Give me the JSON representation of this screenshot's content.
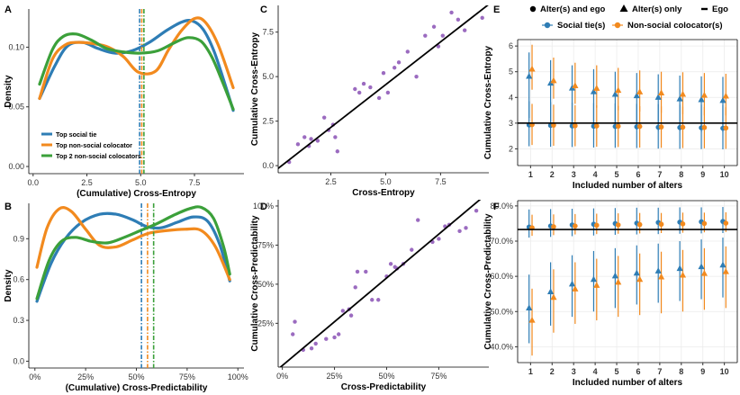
{
  "colors": {
    "social": "#2E7DB5",
    "nonsocial": "#F28A1E",
    "top2": "#3BA03A",
    "scatter": "#9B6BC0",
    "line": "#000000",
    "grid": "#EBEBEB",
    "panel_bg_ab": "#FFFFFF"
  },
  "legend_top": {
    "alters_ego": "Alter(s) and ego",
    "alters_only": "Alter(s) only",
    "ego": "Ego",
    "social": "Social tie(s)",
    "nonsocial": "Non-social colocator(s)",
    "icons": [
      "circle-icon",
      "triangle-icon",
      "dash-icon"
    ]
  },
  "chart_data": [
    {
      "panel": "A",
      "type": "line",
      "xlabel": "(Cumulative) Cross-Entropy",
      "ylabel": "Density",
      "xlim": [
        -0.2,
        9.8
      ],
      "ylim": [
        -0.006,
        0.132
      ],
      "xticks": [
        0,
        2.5,
        5,
        7.5
      ],
      "xtick_labels": [
        "0.0",
        "2.5",
        "5.0",
        "7.5"
      ],
      "yticks": [
        0,
        0.05,
        0.1
      ],
      "ytick_labels": [
        "0.00",
        "0.05",
        "0.10"
      ],
      "legend": [
        "Top social tie",
        "Top non-social colocator",
        "Top 2 non-social colocators"
      ],
      "series": [
        {
          "name": "Top social tie",
          "color_key": "social",
          "mean": 4.95,
          "x": [
            0.3,
            1.0,
            1.6,
            2.3,
            3.0,
            3.8,
            4.6,
            5.4,
            6.2,
            6.9,
            7.4,
            7.9,
            8.4,
            8.9,
            9.3
          ],
          "y": [
            0.057,
            0.084,
            0.101,
            0.104,
            0.099,
            0.095,
            0.097,
            0.104,
            0.114,
            0.121,
            0.122,
            0.115,
            0.097,
            0.07,
            0.047
          ]
        },
        {
          "name": "Top non-social colocator",
          "color_key": "nonsocial",
          "mean": 5.05,
          "x": [
            0.3,
            0.9,
            1.5,
            2.1,
            2.8,
            3.5,
            4.2,
            4.9,
            5.7,
            6.3,
            6.9,
            7.5,
            8.0,
            8.6,
            9.3
          ],
          "y": [
            0.057,
            0.09,
            0.102,
            0.104,
            0.103,
            0.1,
            0.092,
            0.079,
            0.08,
            0.098,
            0.114,
            0.124,
            0.121,
            0.102,
            0.066
          ]
        },
        {
          "name": "Top 2 non-social colocators",
          "color_key": "top2",
          "mean": 5.15,
          "x": [
            0.3,
            0.9,
            1.4,
            2.0,
            2.7,
            3.4,
            4.2,
            5.0,
            5.8,
            6.6,
            7.2,
            7.8,
            8.3,
            8.8,
            9.3
          ],
          "y": [
            0.069,
            0.098,
            0.109,
            0.111,
            0.106,
            0.099,
            0.096,
            0.095,
            0.097,
            0.104,
            0.108,
            0.105,
            0.092,
            0.071,
            0.048
          ]
        }
      ]
    },
    {
      "panel": "B",
      "type": "line",
      "xlabel": "(Cumulative) Cross-Predictability",
      "ylabel": "Density",
      "xlim": [
        -0.03,
        1.03
      ],
      "ylim": [
        -0.05,
        1.16
      ],
      "xticks": [
        0,
        0.25,
        0.5,
        0.75,
        1.0
      ],
      "xtick_labels": [
        "0%",
        "25%",
        "50%",
        "75%",
        "100%"
      ],
      "yticks": [
        0,
        0.3,
        0.6,
        0.9
      ],
      "ytick_labels": [
        "0.0",
        "0.3",
        "0.6",
        "0.9"
      ],
      "series": [
        {
          "name": "Top social tie",
          "color_key": "social",
          "mean": 0.525,
          "x": [
            0.01,
            0.08,
            0.15,
            0.23,
            0.32,
            0.4,
            0.48,
            0.55,
            0.62,
            0.7,
            0.78,
            0.85,
            0.91,
            0.96
          ],
          "y": [
            0.44,
            0.72,
            0.9,
            1.02,
            1.08,
            1.08,
            1.04,
            0.99,
            0.98,
            1.02,
            1.06,
            1.03,
            0.86,
            0.59
          ]
        },
        {
          "name": "Top non-social colocator",
          "color_key": "nonsocial",
          "mean": 0.555,
          "x": [
            0.01,
            0.06,
            0.12,
            0.18,
            0.25,
            0.32,
            0.4,
            0.48,
            0.56,
            0.65,
            0.74,
            0.82,
            0.89,
            0.96
          ],
          "y": [
            0.69,
            0.98,
            1.12,
            1.1,
            0.97,
            0.85,
            0.84,
            0.89,
            0.94,
            0.96,
            0.97,
            0.96,
            0.84,
            0.6
          ]
        },
        {
          "name": "Top 2 non-social colocators",
          "color_key": "top2",
          "mean": 0.585,
          "x": [
            0.01,
            0.07,
            0.13,
            0.2,
            0.28,
            0.36,
            0.44,
            0.52,
            0.6,
            0.68,
            0.76,
            0.82,
            0.88,
            0.93,
            0.96
          ],
          "y": [
            0.46,
            0.74,
            0.88,
            0.91,
            0.88,
            0.87,
            0.91,
            0.96,
            1.01,
            1.07,
            1.12,
            1.13,
            1.05,
            0.84,
            0.64
          ]
        }
      ]
    },
    {
      "panel": "C",
      "type": "scatter",
      "xlabel": "Cross-Entropy",
      "ylabel": "Cumulative Cross-Entropy",
      "xlim": [
        0.1,
        9.7
      ],
      "ylim": [
        -0.4,
        9.0
      ],
      "xticks": [
        2.5,
        5.0,
        7.5
      ],
      "xtick_labels": [
        "2.5",
        "5.0",
        "7.5"
      ],
      "yticks": [
        0,
        2.5,
        5,
        7.5
      ],
      "ytick_labels": [
        "0.0",
        "2.5",
        "5.0",
        "7.5"
      ],
      "fit_line": {
        "slope": 0.96,
        "intercept": -0.25
      },
      "points": [
        [
          0.6,
          0.2
        ],
        [
          1.0,
          1.2
        ],
        [
          1.3,
          1.6
        ],
        [
          1.5,
          1.1
        ],
        [
          1.6,
          1.5
        ],
        [
          1.9,
          1.4
        ],
        [
          2.2,
          2.7
        ],
        [
          2.4,
          2.0
        ],
        [
          2.6,
          2.3
        ],
        [
          2.7,
          1.6
        ],
        [
          2.8,
          0.8
        ],
        [
          3.6,
          4.3
        ],
        [
          3.8,
          4.1
        ],
        [
          4.0,
          4.6
        ],
        [
          4.3,
          4.4
        ],
        [
          4.7,
          3.8
        ],
        [
          4.9,
          5.2
        ],
        [
          5.1,
          4.1
        ],
        [
          5.4,
          5.5
        ],
        [
          5.6,
          5.8
        ],
        [
          6.0,
          6.4
        ],
        [
          6.4,
          5.0
        ],
        [
          6.8,
          7.3
        ],
        [
          7.2,
          7.8
        ],
        [
          7.4,
          6.7
        ],
        [
          7.6,
          7.3
        ],
        [
          8.0,
          8.6
        ],
        [
          8.3,
          8.2
        ],
        [
          8.6,
          7.6
        ],
        [
          9.4,
          8.3
        ]
      ]
    },
    {
      "panel": "D",
      "type": "scatter",
      "xlabel": "Cross-Predictability",
      "ylabel": "Cumulative Cross-Predictability",
      "xlim": [
        -0.02,
        0.99
      ],
      "ylim": [
        -0.03,
        1.04
      ],
      "xticks": [
        0,
        0.25,
        0.5,
        0.75
      ],
      "xtick_labels": [
        "0%",
        "25%",
        "50%",
        "75%"
      ],
      "yticks": [
        0.25,
        0.5,
        0.75,
        1.0
      ],
      "ytick_labels": [
        "25%",
        "50%",
        "75%",
        "100%"
      ],
      "fit_line": {
        "slope": 1.12,
        "intercept": -0.02
      },
      "points": [
        [
          0.05,
          0.18
        ],
        [
          0.06,
          0.26
        ],
        [
          0.1,
          0.08
        ],
        [
          0.14,
          0.09
        ],
        [
          0.16,
          0.12
        ],
        [
          0.21,
          0.15
        ],
        [
          0.25,
          0.16
        ],
        [
          0.27,
          0.18
        ],
        [
          0.29,
          0.33
        ],
        [
          0.32,
          0.34
        ],
        [
          0.33,
          0.3
        ],
        [
          0.35,
          0.48
        ],
        [
          0.36,
          0.58
        ],
        [
          0.4,
          0.58
        ],
        [
          0.43,
          0.4
        ],
        [
          0.46,
          0.4
        ],
        [
          0.5,
          0.55
        ],
        [
          0.52,
          0.63
        ],
        [
          0.54,
          0.61
        ],
        [
          0.55,
          0.6
        ],
        [
          0.58,
          0.63
        ],
        [
          0.62,
          0.72
        ],
        [
          0.65,
          0.91
        ],
        [
          0.72,
          0.77
        ],
        [
          0.75,
          0.79
        ],
        [
          0.78,
          0.87
        ],
        [
          0.8,
          0.88
        ],
        [
          0.85,
          0.84
        ],
        [
          0.88,
          0.86
        ],
        [
          0.93,
          0.97
        ]
      ]
    },
    {
      "panel": "E",
      "type": "scatter",
      "xlabel": "Included number of alters",
      "ylabel": "Cumulative Cross-Entropy",
      "categories": [
        1,
        2,
        3,
        4,
        5,
        6,
        7,
        8,
        9,
        10
      ],
      "xlim": [
        0.4,
        10.6
      ],
      "ylim": [
        1.35,
        6.25
      ],
      "yticks": [
        2,
        3,
        4,
        5,
        6
      ],
      "ytick_labels": [
        "2",
        "3",
        "4",
        "5",
        "6"
      ],
      "ego_line": 3.0,
      "series": [
        {
          "name": "Social tie(s), Alter(s) and ego",
          "color_key": "social",
          "marker": "circle",
          "values": [
            2.93,
            2.91,
            2.89,
            2.88,
            2.87,
            2.86,
            2.84,
            2.83,
            2.82,
            2.8
          ],
          "lower": [
            2.1,
            2.08,
            2.07,
            2.05,
            2.04,
            2.03,
            2.01,
            2.0,
            1.99,
            1.98
          ],
          "upper": [
            3.85,
            3.82,
            3.8,
            3.78,
            3.77,
            3.75,
            3.74,
            3.72,
            3.71,
            3.7
          ]
        },
        {
          "name": "Non-social colocator(s), Alter(s) and ego",
          "color_key": "nonsocial",
          "marker": "circle",
          "values": [
            2.94,
            2.92,
            2.9,
            2.89,
            2.88,
            2.87,
            2.85,
            2.84,
            2.83,
            2.81
          ],
          "lower": [
            2.15,
            2.12,
            2.1,
            2.08,
            2.07,
            2.05,
            2.04,
            2.03,
            2.02,
            2.0
          ],
          "upper": [
            3.75,
            3.72,
            3.7,
            3.69,
            3.67,
            3.66,
            3.65,
            3.64,
            3.63,
            3.62
          ]
        },
        {
          "name": "Social tie(s), Alter(s) only",
          "color_key": "social",
          "marker": "triangle",
          "values": [
            4.82,
            4.55,
            4.36,
            4.22,
            4.12,
            4.06,
            4.0,
            3.94,
            3.91,
            3.88
          ],
          "lower": [
            3.2,
            3.05,
            2.95,
            2.85,
            2.8,
            2.75,
            2.7,
            2.7,
            2.65,
            2.65
          ],
          "upper": [
            5.75,
            5.45,
            5.25,
            5.1,
            5.0,
            4.95,
            4.9,
            4.85,
            4.82,
            4.8
          ]
        },
        {
          "name": "Non-social colocator(s), Alter(s) only",
          "color_key": "nonsocial",
          "marker": "triangle",
          "values": [
            5.1,
            4.65,
            4.45,
            4.35,
            4.27,
            4.21,
            4.17,
            4.12,
            4.08,
            4.05
          ],
          "lower": [
            4.3,
            3.95,
            3.75,
            3.6,
            3.5,
            3.45,
            3.4,
            3.35,
            3.3,
            3.3
          ],
          "upper": [
            6.05,
            5.55,
            5.35,
            5.25,
            5.15,
            5.05,
            5.0,
            4.98,
            4.95,
            4.92
          ]
        }
      ]
    },
    {
      "panel": "F",
      "type": "scatter",
      "xlabel": "Included number of alters",
      "ylabel": "Cumulative Cross-Predictability",
      "categories": [
        1,
        2,
        3,
        4,
        5,
        6,
        7,
        8,
        9,
        10
      ],
      "xlim": [
        0.4,
        10.6
      ],
      "ylim": [
        0.355,
        0.815
      ],
      "yticks": [
        0.4,
        0.5,
        0.6,
        0.7,
        0.8
      ],
      "ytick_labels": [
        "40.0%",
        "50.0%",
        "60.0%",
        "70.0%",
        "80.0%"
      ],
      "ego_line": 0.733,
      "series": [
        {
          "name": "Social tie(s), Alter(s) and ego",
          "color_key": "social",
          "marker": "circle",
          "values": [
            0.74,
            0.743,
            0.746,
            0.748,
            0.75,
            0.751,
            0.753,
            0.754,
            0.755,
            0.756
          ],
          "lower": [
            0.71,
            0.712,
            0.714,
            0.716,
            0.718,
            0.719,
            0.72,
            0.721,
            0.722,
            0.723
          ],
          "upper": [
            0.79,
            0.791,
            0.792,
            0.793,
            0.794,
            0.795,
            0.795,
            0.796,
            0.796,
            0.797
          ]
        },
        {
          "name": "Non-social colocator(s), Alter(s) and ego",
          "color_key": "nonsocial",
          "marker": "circle",
          "values": [
            0.738,
            0.741,
            0.743,
            0.745,
            0.746,
            0.747,
            0.748,
            0.749,
            0.75,
            0.751
          ],
          "lower": [
            0.715,
            0.717,
            0.719,
            0.72,
            0.721,
            0.722,
            0.723,
            0.724,
            0.725,
            0.726
          ],
          "upper": [
            0.775,
            0.776,
            0.777,
            0.778,
            0.779,
            0.78,
            0.78,
            0.781,
            0.781,
            0.782
          ]
        },
        {
          "name": "Social tie(s), Alter(s) only",
          "color_key": "social",
          "marker": "triangle",
          "values": [
            0.51,
            0.556,
            0.578,
            0.591,
            0.601,
            0.609,
            0.615,
            0.622,
            0.627,
            0.632
          ],
          "lower": [
            0.41,
            0.46,
            0.485,
            0.5,
            0.51,
            0.52,
            0.525,
            0.53,
            0.535,
            0.54
          ],
          "upper": [
            0.605,
            0.64,
            0.66,
            0.672,
            0.68,
            0.688,
            0.693,
            0.7,
            0.705,
            0.71
          ]
        },
        {
          "name": "Non-social colocator(s), Alter(s) only",
          "color_key": "nonsocial",
          "marker": "triangle",
          "values": [
            0.475,
            0.54,
            0.564,
            0.574,
            0.583,
            0.591,
            0.598,
            0.603,
            0.608,
            0.613
          ],
          "lower": [
            0.375,
            0.44,
            0.465,
            0.475,
            0.485,
            0.49,
            0.495,
            0.5,
            0.505,
            0.51
          ],
          "upper": [
            0.565,
            0.62,
            0.64,
            0.65,
            0.658,
            0.665,
            0.67,
            0.675,
            0.68,
            0.685
          ]
        }
      ]
    }
  ]
}
